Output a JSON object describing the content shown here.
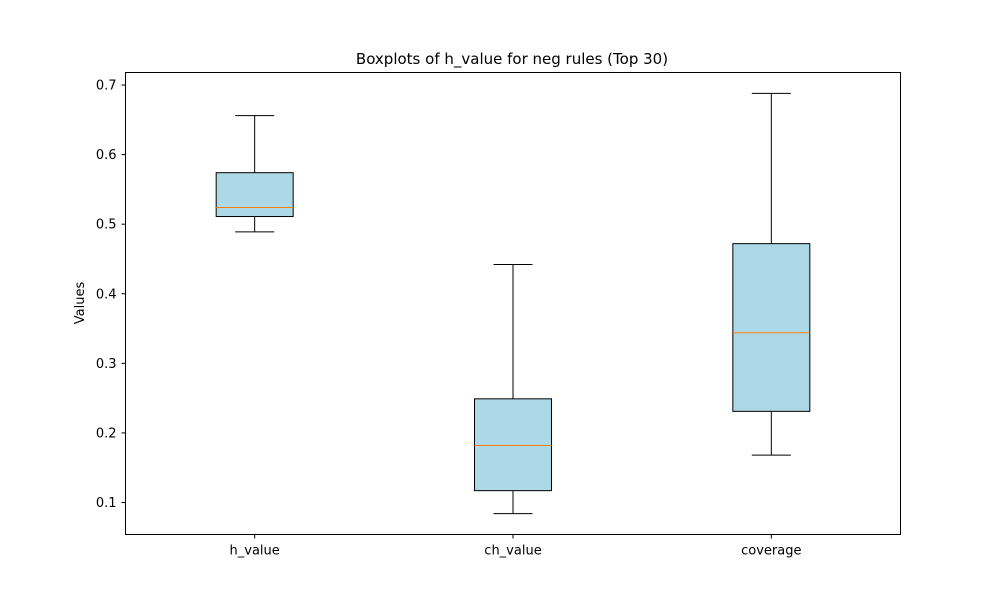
{
  "chart_data": {
    "type": "boxplot",
    "title": "Boxplots of h_value for neg rules (Top 30)",
    "xlabel": "",
    "ylabel": "Values",
    "ylim": [
      0.054,
      0.718
    ],
    "yticks": [
      "0.1",
      "0.2",
      "0.3",
      "0.4",
      "0.5",
      "0.6",
      "0.7"
    ],
    "ytick_values": [
      0.1,
      0.2,
      0.3,
      0.4,
      0.5,
      0.6,
      0.7
    ],
    "categories": [
      "h_value",
      "ch_value",
      "coverage"
    ],
    "boxes": [
      {
        "name": "h_value",
        "whisker_low": 0.489,
        "q1": 0.511,
        "median": 0.524,
        "q3": 0.574,
        "whisker_high": 0.656
      },
      {
        "name": "ch_value",
        "whisker_low": 0.084,
        "q1": 0.117,
        "median": 0.182,
        "q3": 0.249,
        "whisker_high": 0.442
      },
      {
        "name": "coverage",
        "whisker_low": 0.168,
        "q1": 0.231,
        "median": 0.344,
        "q3": 0.472,
        "whisker_high": 0.688
      }
    ],
    "grid": false,
    "legend": "none",
    "colors": {
      "box_fill": "#add8e6",
      "box_edge": "#000000",
      "median": "#ff7f0e",
      "whisker": "#000000"
    }
  }
}
